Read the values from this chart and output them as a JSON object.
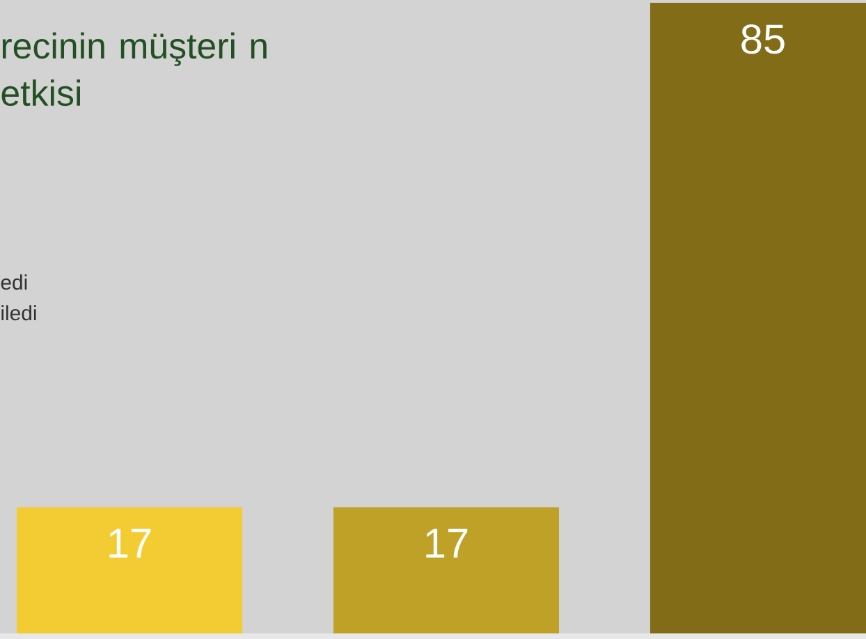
{
  "chart_data": {
    "type": "bar",
    "title": "recinin müşteri n etkisi",
    "categories": [
      null,
      null,
      null
    ],
    "values": [
      17,
      17,
      85
    ],
    "colors": [
      "#f3cb32",
      "#bfa128",
      "#836c18"
    ],
    "data_labels": true,
    "annotations": [
      "edi",
      "iledi"
    ]
  }
}
